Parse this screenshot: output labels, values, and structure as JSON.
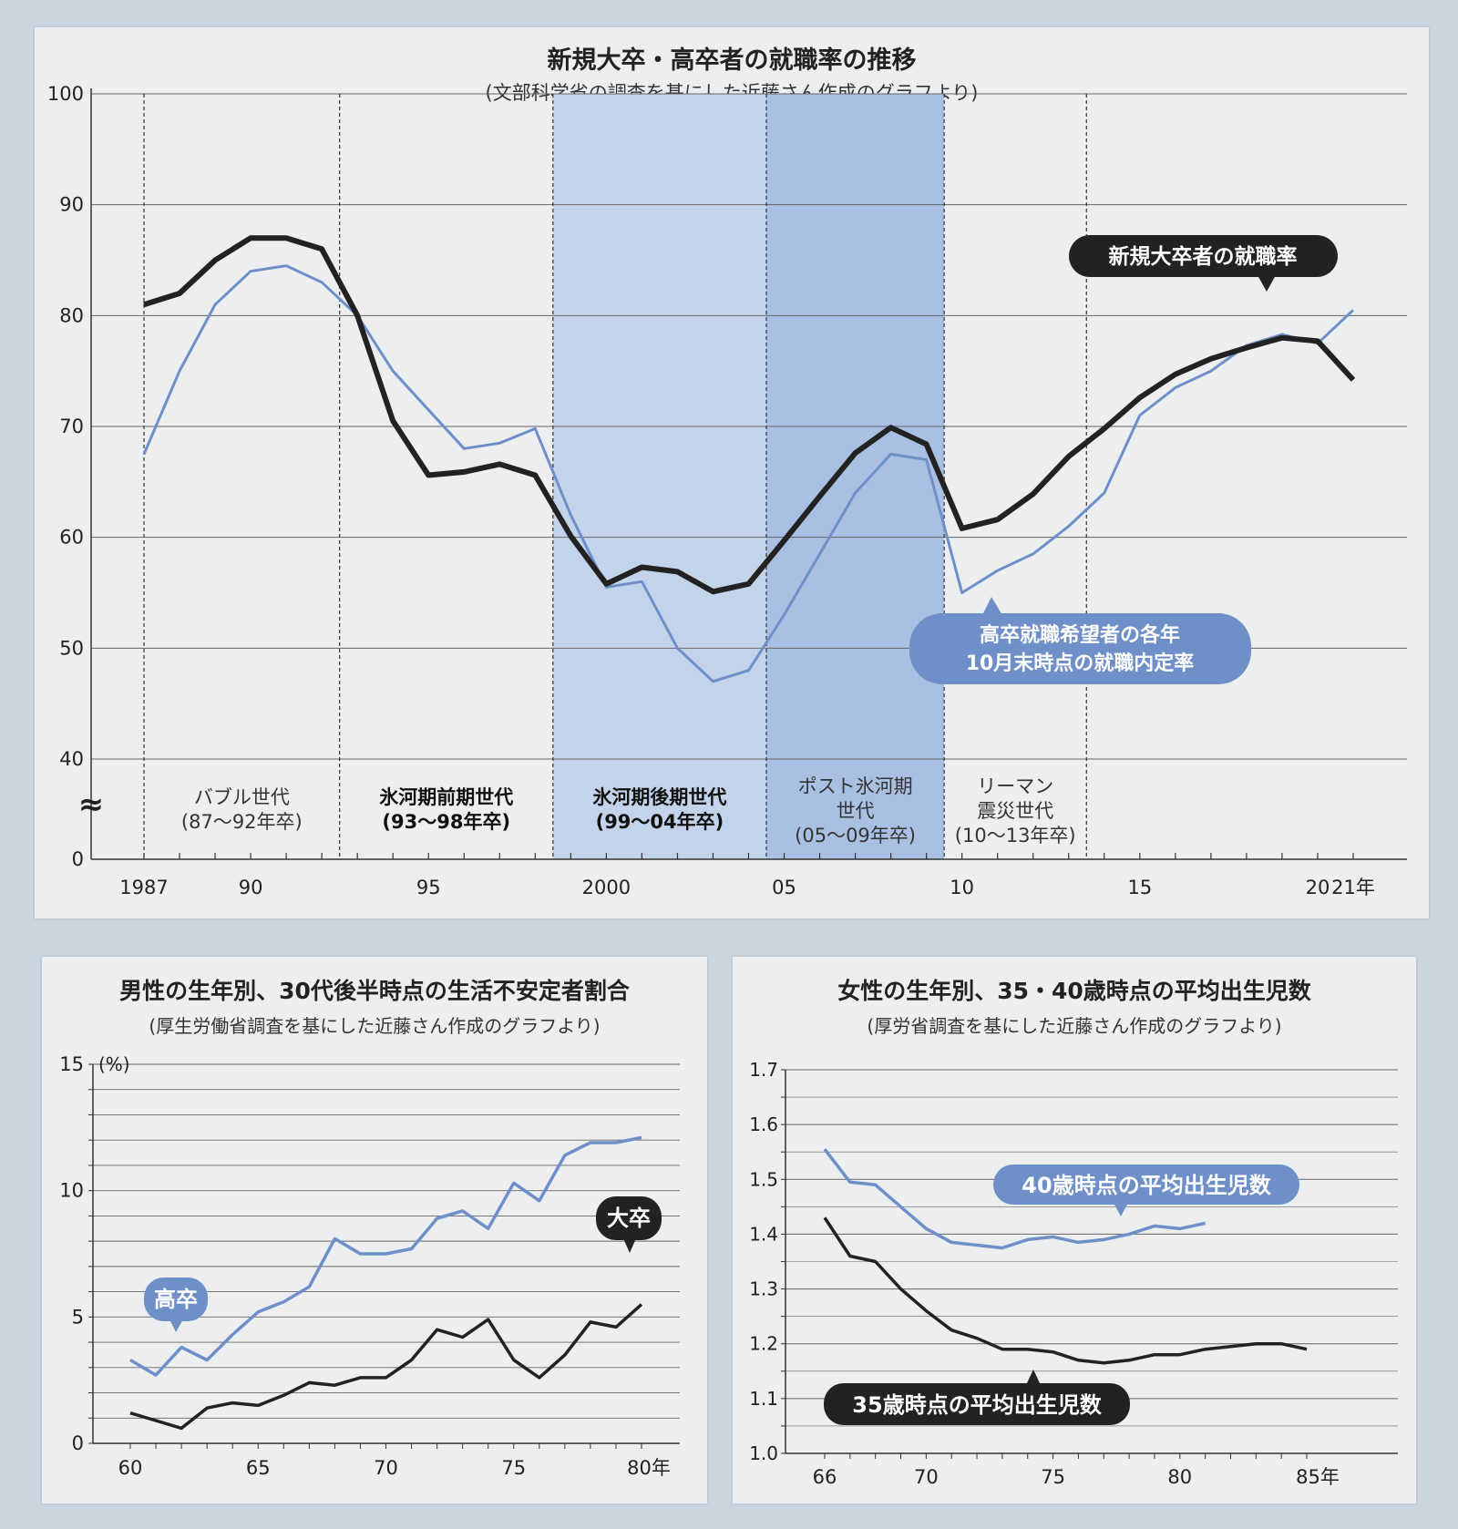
{
  "colors": {
    "black_line": "#222222",
    "blue_line": "#6f8fc8",
    "ice_band": "#c3d3ea",
    "ice_band_dark": "#a9c0e3",
    "grid": "#666666"
  },
  "top": {
    "title": "新規大卒・高卒者の就職率の推移",
    "subtitle": "(文部科学省の調査を基にした近藤さん作成のグラフより)",
    "axis_break": "≈",
    "callout_black": "新規大卒者の就職率",
    "callout_blue_1": "高卒就職希望者の各年",
    "callout_blue_2": "10月末時点の就職内定率",
    "eras": [
      {
        "line1": "バブル世代",
        "line2": "(87〜92年卒)",
        "line3": ""
      },
      {
        "line1": "氷河期前期世代",
        "line2": "(93〜98年卒)",
        "line3": ""
      },
      {
        "line1": "氷河期後期世代",
        "line2": "(99〜04年卒)",
        "line3": ""
      },
      {
        "line1": "ポスト氷河期",
        "line2": "世代",
        "line3": "(05〜09年卒)"
      },
      {
        "line1": "リーマン",
        "line2": "震災世代",
        "line3": "(10〜13年卒)"
      }
    ]
  },
  "left": {
    "title": "男性の生年別、30代後半時点の生活不安定者割合",
    "subtitle": "(厚生労働省調査を基にした近藤さん作成のグラフより)",
    "unit": "(%)",
    "label_blue": "高卒",
    "label_black": "大卒"
  },
  "right": {
    "title": "女性の生年別、35・40歳時点の平均出生児数",
    "subtitle": "(厚労省調査を基にした近藤さん作成のグラフより)",
    "label_blue": "40歳時点の平均出生児数",
    "label_black": "35歳時点の平均出生児数"
  },
  "chart_data": [
    {
      "type": "line",
      "title": "新規大卒・高卒者の就職率の推移",
      "subtitle": "(文部科学省の調査を基にした近藤さん作成のグラフより)",
      "xlim": [
        1987,
        2021
      ],
      "ylim": [
        0,
        100
      ],
      "y_axis_break": [
        0,
        40
      ],
      "x_ticks": [
        1987,
        1990,
        1995,
        2000,
        2005,
        2010,
        2015,
        2020,
        2021
      ],
      "x_tick_labels": [
        "1987",
        "90",
        "95",
        "2000",
        "05",
        "10",
        "15",
        "20",
        "21年"
      ],
      "y_ticks": [
        0,
        40,
        50,
        60,
        70,
        80,
        90,
        100
      ],
      "y_tick_labels": [
        "0",
        "40",
        "50",
        "60",
        "70",
        "80",
        "90",
        "100"
      ],
      "grid": true,
      "era_boundaries": [
        1987,
        1992.5,
        1998.5,
        2004.5,
        2009.5,
        2013.5
      ],
      "series": [
        {
          "name": "新規大卒者の就職率",
          "x": [
            1987,
            1988,
            1989,
            1990,
            1991,
            1992,
            1993,
            1994,
            1995,
            1996,
            1997,
            1998,
            1999,
            2000,
            2001,
            2002,
            2003,
            2004,
            2005,
            2006,
            2007,
            2008,
            2009,
            2010,
            2011,
            2012,
            2013,
            2014,
            2015,
            2016,
            2017,
            2018,
            2019,
            2020,
            2021
          ],
          "values": [
            81.0,
            82.0,
            85.0,
            87.0,
            87.0,
            86.0,
            80.0,
            70.5,
            65.6,
            65.9,
            66.6,
            65.6,
            60.1,
            55.8,
            57.3,
            56.9,
            55.1,
            55.8,
            59.7,
            63.7,
            67.6,
            69.9,
            68.4,
            60.8,
            61.6,
            63.9,
            67.3,
            69.8,
            72.6,
            74.7,
            76.1,
            77.1,
            78.0,
            77.7,
            74.2
          ]
        },
        {
          "name": "高卒就職希望者の各年10月末時点の就職内定率",
          "x": [
            1987,
            1988,
            1989,
            1990,
            1991,
            1992,
            1993,
            1994,
            1995,
            1996,
            1997,
            1998,
            1999,
            2000,
            2001,
            2002,
            2003,
            2004,
            2005,
            2006,
            2007,
            2008,
            2009,
            2010,
            2011,
            2012,
            2013,
            2014,
            2015,
            2016,
            2017,
            2018,
            2019,
            2020,
            2021
          ],
          "values": [
            67.5,
            75.0,
            81.0,
            84.0,
            84.5,
            83.0,
            80.0,
            75.0,
            71.5,
            68.0,
            68.5,
            69.8,
            62.0,
            55.5,
            56.0,
            50.0,
            47.0,
            48.0,
            53.0,
            58.5,
            64.0,
            67.5,
            67.0,
            55.0,
            57.0,
            58.5,
            61.0,
            64.0,
            71.0,
            73.5,
            75.0,
            77.3,
            78.3,
            77.5,
            80.5
          ]
        }
      ]
    },
    {
      "type": "line",
      "title": "男性の生年別、30代後半時点の生活不安定者割合",
      "subtitle": "(厚生労働省調査を基にした近藤さん作成のグラフより)",
      "ylabel": "(%)",
      "xlim": [
        1960,
        1980
      ],
      "ylim": [
        0,
        15
      ],
      "x_ticks": [
        60,
        65,
        70,
        75,
        80
      ],
      "x_tick_labels": [
        "60",
        "65",
        "70",
        "75",
        "80年"
      ],
      "y_ticks": [
        0,
        5,
        10,
        15
      ],
      "y_tick_labels": [
        "0",
        "5",
        "10",
        "15"
      ],
      "grid": true,
      "series": [
        {
          "name": "高卒",
          "x": [
            60,
            61,
            62,
            63,
            64,
            65,
            66,
            67,
            68,
            69,
            70,
            71,
            72,
            73,
            74,
            75,
            76,
            77,
            78,
            79,
            80
          ],
          "values": [
            3.3,
            2.7,
            3.8,
            3.3,
            4.3,
            5.2,
            5.6,
            6.2,
            8.1,
            7.5,
            7.5,
            7.7,
            8.9,
            9.2,
            8.5,
            10.3,
            9.6,
            11.4,
            11.9,
            11.9,
            12.1
          ]
        },
        {
          "name": "大卒",
          "x": [
            60,
            61,
            62,
            63,
            64,
            65,
            66,
            67,
            68,
            69,
            70,
            71,
            72,
            73,
            74,
            75,
            76,
            77,
            78,
            79,
            80
          ],
          "values": [
            1.2,
            0.9,
            0.6,
            1.4,
            1.6,
            1.5,
            1.9,
            2.4,
            2.3,
            2.6,
            2.6,
            3.3,
            4.5,
            4.2,
            4.9,
            3.3,
            2.6,
            3.5,
            4.8,
            4.6,
            5.5
          ]
        }
      ]
    },
    {
      "type": "line",
      "title": "女性の生年別、35・40歳時点の平均出生児数",
      "subtitle": "(厚労省調査を基にした近藤さん作成のグラフより)",
      "xlim": [
        1966,
        1985
      ],
      "ylim": [
        1.0,
        1.7
      ],
      "x_ticks": [
        66,
        70,
        75,
        80,
        85
      ],
      "x_tick_labels": [
        "66",
        "70",
        "75",
        "80",
        "85年"
      ],
      "y_ticks": [
        1.0,
        1.1,
        1.2,
        1.3,
        1.4,
        1.5,
        1.6,
        1.7
      ],
      "y_tick_labels": [
        "1.0",
        "1.1",
        "1.2",
        "1.3",
        "1.4",
        "1.5",
        "1.6",
        "1.7"
      ],
      "grid": true,
      "series": [
        {
          "name": "40歳時点の平均出生児数",
          "x": [
            66,
            67,
            68,
            69,
            70,
            71,
            72,
            73,
            74,
            75,
            76,
            77,
            78,
            79,
            80,
            81
          ],
          "values": [
            1.555,
            1.495,
            1.49,
            1.45,
            1.41,
            1.385,
            1.38,
            1.375,
            1.39,
            1.395,
            1.385,
            1.39,
            1.4,
            1.415,
            1.41,
            1.42
          ]
        },
        {
          "name": "35歳時点の平均出生児数",
          "x": [
            66,
            67,
            68,
            69,
            70,
            71,
            72,
            73,
            74,
            75,
            76,
            77,
            78,
            79,
            80,
            81,
            82,
            83,
            84,
            85
          ],
          "values": [
            1.43,
            1.36,
            1.35,
            1.3,
            1.26,
            1.225,
            1.21,
            1.19,
            1.19,
            1.185,
            1.17,
            1.165,
            1.17,
            1.18,
            1.18,
            1.19,
            1.195,
            1.2,
            1.2,
            1.19
          ]
        }
      ]
    }
  ]
}
